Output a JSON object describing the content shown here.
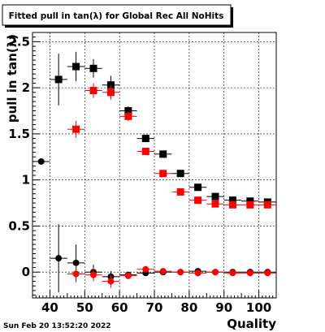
{
  "chart_data": {
    "type": "scatter",
    "title": "Fitted pull in tan(λ) for Global Rec All NoHits",
    "xlabel": "Quality",
    "ylabel": "pull in tan(λ)",
    "xlim": [
      35,
      105
    ],
    "ylim": [
      -0.28,
      2.6
    ],
    "grid": true,
    "xticks": [
      40,
      50,
      60,
      70,
      80,
      90,
      100
    ],
    "yticks": [
      0,
      0.5,
      1,
      1.5,
      2,
      2.5
    ],
    "xtick_labels": [
      "40",
      "50",
      "60",
      "70",
      "80",
      "90",
      "100"
    ],
    "ytick_labels": [
      "0",
      "0.5",
      "1",
      "1.5",
      "2",
      "2.5"
    ],
    "series": [
      {
        "color": "#000000",
        "marker": "square",
        "x": [
          42.5,
          47.5,
          52.5,
          57.5,
          62.5,
          67.5,
          72.5,
          77.5,
          82.5,
          87.5,
          92.5,
          97.5,
          102.5
        ],
        "y": [
          2.09,
          2.23,
          2.21,
          2.03,
          1.75,
          1.45,
          1.28,
          1.07,
          0.92,
          0.82,
          0.78,
          0.77,
          0.76
        ],
        "yerr": [
          0.28,
          0.16,
          0.1,
          0.1,
          0.05,
          0.03,
          0.02,
          0.01,
          0.01,
          0.01,
          0.01,
          0.01,
          0.01
        ]
      },
      {
        "color": "#ff0000",
        "marker": "square",
        "x": [
          47.5,
          52.5,
          57.5,
          62.5,
          67.5,
          72.5,
          77.5,
          82.5,
          87.5,
          92.5,
          97.5,
          102.5
        ],
        "y": [
          1.55,
          1.97,
          1.95,
          1.69,
          1.31,
          1.07,
          0.87,
          0.78,
          0.74,
          0.73,
          0.73,
          0.73
        ],
        "yerr": [
          0.09,
          0.08,
          0.08,
          0.05,
          0.03,
          0.02,
          0.01,
          0.01,
          0.01,
          0.01,
          0.01,
          0.01
        ]
      },
      {
        "color": "#000000",
        "marker": "circle",
        "x": [
          37.5,
          42.5,
          47.5,
          52.5,
          57.5,
          62.5,
          67.5,
          72.5,
          77.5,
          82.5,
          87.5,
          92.5,
          97.5,
          102.5
        ],
        "y": [
          1.2,
          0.15,
          0.1,
          0.0,
          -0.05,
          -0.03,
          -0.01,
          0.0,
          0.0,
          0.01,
          0.0,
          0.0,
          0.0,
          0.0
        ],
        "yerr": [
          0.0,
          0.37,
          0.2,
          0.08,
          0.06,
          0.03,
          0.02,
          0.01,
          0.01,
          0.01,
          0.01,
          0.01,
          0.01,
          0.01
        ]
      },
      {
        "color": "#ff0000",
        "marker": "circle",
        "x": [
          47.5,
          52.5,
          57.5,
          62.5,
          67.5,
          72.5,
          77.5,
          82.5,
          87.5,
          92.5,
          97.5,
          102.5
        ],
        "y": [
          -0.02,
          -0.03,
          -0.1,
          -0.04,
          0.03,
          0.01,
          0.0,
          -0.01,
          0.0,
          -0.01,
          -0.01,
          -0.01
        ],
        "yerr": [
          0.09,
          0.07,
          0.07,
          0.03,
          0.02,
          0.01,
          0.01,
          0.01,
          0.01,
          0.01,
          0.01,
          0.01
        ]
      }
    ]
  },
  "footer": {
    "timestamp": "Sun Feb 20 13:52:20 2022"
  }
}
